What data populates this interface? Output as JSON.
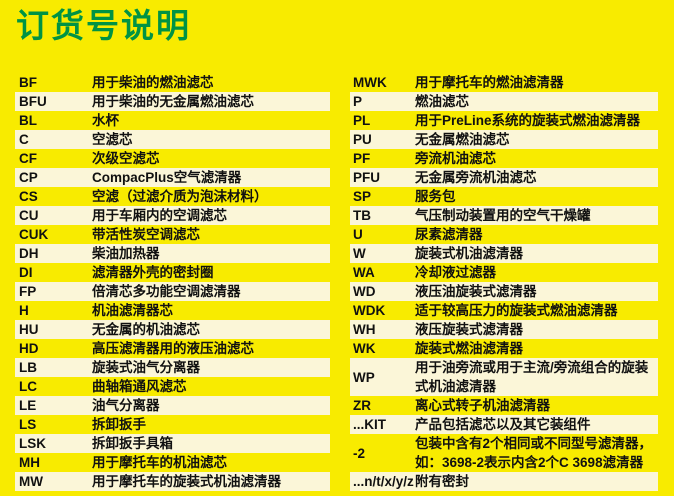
{
  "page": {
    "title": "订货号说明"
  },
  "colors": {
    "background": "#F8EB00",
    "row_stripe": "#FBF6D8",
    "title_green": "#009344",
    "text": "#111111"
  },
  "table": {
    "left_rows": [
      {
        "code": "BF",
        "desc": "用于柴油的燃油滤芯"
      },
      {
        "code": "BFU",
        "desc": "用于柴油的无金属燃油滤芯"
      },
      {
        "code": "BL",
        "desc": "水杯"
      },
      {
        "code": "C",
        "desc": "空滤芯"
      },
      {
        "code": "CF",
        "desc": "次级空滤芯"
      },
      {
        "code": "CP",
        "desc": "CompacPlus空气滤清器"
      },
      {
        "code": "CS",
        "desc": "空滤（过滤介质为泡沫材料）"
      },
      {
        "code": "CU",
        "desc": "用于车厢内的空调滤芯"
      },
      {
        "code": "CUK",
        "desc": "带活性炭空调滤芯"
      },
      {
        "code": "DH",
        "desc": "柴油加热器"
      },
      {
        "code": "DI",
        "desc": "滤清器外壳的密封圈"
      },
      {
        "code": "FP",
        "desc": "倍清芯多功能空调滤清器"
      },
      {
        "code": "H",
        "desc": "机油滤清器芯"
      },
      {
        "code": "HU",
        "desc": "无金属的机油滤芯"
      },
      {
        "code": "HD",
        "desc": "高压滤清器用的液压油滤芯"
      },
      {
        "code": "LB",
        "desc": "旋装式油气分离器"
      },
      {
        "code": "LC",
        "desc": "曲轴箱通风滤芯"
      },
      {
        "code": "LE",
        "desc": "油气分离器"
      },
      {
        "code": "LS",
        "desc": "拆卸扳手"
      },
      {
        "code": "LSK",
        "desc": "拆卸扳手具箱"
      },
      {
        "code": "MH",
        "desc": "用于摩托车的机油滤芯"
      },
      {
        "code": "MW",
        "desc": "用于摩托车的旋装式机油滤清器"
      }
    ],
    "right_rows": [
      {
        "code": "MWK",
        "desc": "用于摩托车的燃油滤清器"
      },
      {
        "code": "P",
        "desc": "燃油滤芯"
      },
      {
        "code": "PL",
        "desc": "用于PreLine系统的旋装式燃油滤清器"
      },
      {
        "code": "PU",
        "desc": "无金属燃油滤芯"
      },
      {
        "code": "PF",
        "desc": "旁流机油滤芯"
      },
      {
        "code": "PFU",
        "desc": "无金属旁流机油滤芯"
      },
      {
        "code": "SP",
        "desc": "服务包"
      },
      {
        "code": "TB",
        "desc": "气压制动装置用的空气干燥罐"
      },
      {
        "code": "U",
        "desc": "尿素滤清器"
      },
      {
        "code": "W",
        "desc": "旋装式机油滤清器"
      },
      {
        "code": "WA",
        "desc": "冷却液过滤器"
      },
      {
        "code": "WD",
        "desc": "液压油旋装式滤清器"
      },
      {
        "code": "WDK",
        "desc": "适于较高压力的旋装式燃油滤清器"
      },
      {
        "code": "WH",
        "desc": "液压旋装式滤清器"
      },
      {
        "code": "WK",
        "desc": "旋装式燃油滤清器"
      },
      {
        "code": "WP",
        "desc": "用于油旁流或用于主流/旁流组合的旋装式机油滤清器",
        "tall": true
      },
      {
        "code": "ZR",
        "desc": "离心式转子机油滤清器"
      },
      {
        "code": "...KIT",
        "desc": "产品包括滤芯以及其它装组件"
      },
      {
        "code": "-2",
        "desc": "包装中含有2个相同或不同型号滤清器，如：3698-2表示内含2个C 3698滤清器",
        "tall": true
      },
      {
        "code": "...n/t/x/y/z",
        "desc": "附有密封"
      }
    ]
  }
}
